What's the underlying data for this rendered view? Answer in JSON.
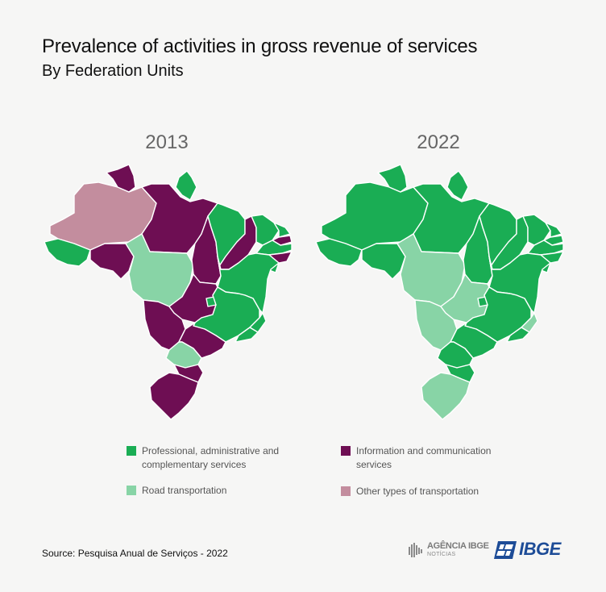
{
  "title": "Prevalence of activities in gross revenue of services",
  "subtitle": "By Federation Units",
  "colors": {
    "professional": "#1aad54",
    "road": "#88d4a6",
    "information": "#6e0e53",
    "other_transport": "#c38d9e",
    "background": "#f6f6f5",
    "border": "#ffffff",
    "ibge_blue": "#1d4c97"
  },
  "chart_data": [
    {
      "type": "choropleth",
      "title": "2013",
      "categories": {
        "professional": "Professional, administrative and complementary services",
        "information": "Information and communication services",
        "road": "Road transportation",
        "other_transport": "Other types of transportation"
      },
      "states": {
        "AC": "professional",
        "AM": "other_transport",
        "RR": "information",
        "AP": "professional",
        "PA": "information",
        "RO": "information",
        "MT": "road",
        "TO": "information",
        "MA": "professional",
        "PI": "information",
        "CE": "professional",
        "RN": "professional",
        "PB": "information",
        "PE": "professional",
        "AL": "information",
        "SE": "professional",
        "BA": "professional",
        "GO": "information",
        "DF": "professional",
        "MS": "information",
        "MG": "professional",
        "ES": "professional",
        "RJ": "professional",
        "SP": "information",
        "PR": "road",
        "SC": "information",
        "RS": "information"
      }
    },
    {
      "type": "choropleth",
      "title": "2022",
      "categories": {
        "professional": "Professional, administrative and complementary services",
        "information": "Information and communication services",
        "road": "Road transportation",
        "other_transport": "Other types of transportation"
      },
      "states": {
        "AC": "professional",
        "AM": "professional",
        "RR": "professional",
        "AP": "professional",
        "PA": "professional",
        "RO": "professional",
        "MT": "road",
        "TO": "professional",
        "MA": "professional",
        "PI": "professional",
        "CE": "professional",
        "RN": "professional",
        "PB": "professional",
        "PE": "professional",
        "AL": "professional",
        "SE": "professional",
        "BA": "professional",
        "GO": "road",
        "DF": "professional",
        "MS": "road",
        "MG": "professional",
        "ES": "road",
        "RJ": "professional",
        "SP": "professional",
        "PR": "professional",
        "SC": "professional",
        "RS": "road"
      }
    }
  ],
  "legend": [
    {
      "key": "professional",
      "label": "Professional, administrative and complementary services"
    },
    {
      "key": "information",
      "label": "Information and communication services"
    },
    {
      "key": "road",
      "label": "Road transportation"
    },
    {
      "key": "other_transport",
      "label": "Other types of transportation"
    }
  ],
  "source": "Source: Pesquisa Anual de Serviços - 2022",
  "logos": {
    "agencia_name": "AGÊNCIA IBGE",
    "agencia_sub": "NOTÍCIAS",
    "ibge": "IBGE"
  }
}
